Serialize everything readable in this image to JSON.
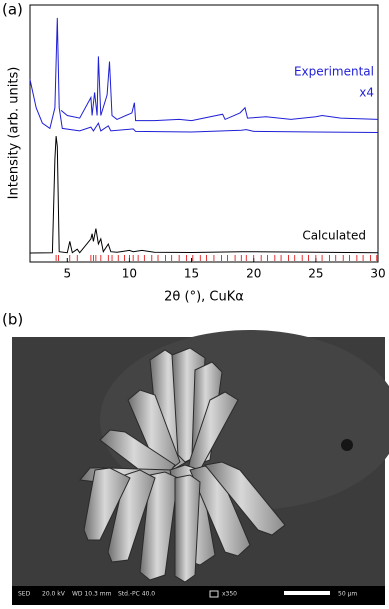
{
  "chart_data": {
    "type": "line",
    "panel_label": "(a)",
    "xlabel": "2θ (°), CuKα",
    "ylabel": "Intensity (arb. units)",
    "xlim": [
      2,
      30
    ],
    "xticks": [
      5,
      10,
      15,
      20,
      25,
      30
    ],
    "ylim": [
      0,
      100
    ],
    "series": [
      {
        "name": "Experimental",
        "color": "#1f1fd6",
        "x": [
          4.5,
          5,
          6,
          6.9,
          7.0,
          7.2,
          7.4,
          7.5,
          7.7,
          8.2,
          8.4,
          8.6,
          9,
          10.2,
          10.4,
          10.5,
          12,
          14,
          15,
          17.5,
          17.7,
          18.9,
          19.3,
          19.5,
          21,
          23,
          25,
          25.5,
          27,
          30
        ],
        "values": [
          59,
          57,
          56,
          64,
          57,
          66,
          57,
          80,
          57,
          65,
          78,
          57,
          55.5,
          58,
          62,
          55,
          55,
          55.5,
          55,
          57.5,
          55.5,
          58,
          60,
          56,
          56.5,
          55.5,
          56.5,
          57,
          56,
          55.5
        ],
        "label": "x4"
      },
      {
        "color": "#1f1fd6",
        "x": [
          2,
          2.5,
          3,
          3.6,
          4.0,
          4.2,
          4.35,
          4.6,
          6,
          6.9,
          7.1,
          7.5,
          7.7,
          8.3,
          8.5,
          10.3,
          10.5,
          15,
          19,
          19.4,
          20,
          25,
          30
        ],
        "values": [
          71,
          60,
          54,
          52,
          60,
          95,
          60,
          52,
          51,
          52.5,
          51,
          54,
          51,
          53,
          51,
          51.8,
          50.8,
          50.6,
          51.3,
          51.5,
          50.8,
          50.6,
          50.4
        ]
      },
      {
        "name": "Calculated",
        "color": "#000000",
        "x": [
          2,
          3.8,
          4.0,
          4.1,
          4.2,
          4.35,
          5.0,
          5.2,
          5.4,
          5.8,
          6.0,
          6.9,
          7.0,
          7.1,
          7.3,
          7.5,
          7.7,
          7.9,
          8.3,
          8.5,
          9,
          10,
          10.3,
          11,
          12,
          15,
          19,
          25,
          30
        ],
        "values": [
          3.5,
          3.6,
          40,
          49,
          45,
          4,
          3.6,
          8,
          3.6,
          5,
          3.6,
          9,
          11,
          8,
          13,
          7,
          9,
          4,
          7,
          4,
          3.8,
          4.5,
          4,
          4.5,
          3.8,
          3.7,
          4,
          3.8,
          3.6
        ]
      }
    ],
    "reflections": {
      "color": "#e00000",
      "x": [
        4.1,
        4.3,
        5.2,
        5.8,
        6.9,
        7.1,
        7.3,
        7.7,
        8.3,
        8.6,
        9.1,
        9.6,
        10.0,
        10.3,
        10.7,
        11.2,
        11.8,
        12.3,
        12.9,
        13.4,
        14.0,
        14.6,
        15.1,
        15.7,
        16.2,
        16.8,
        17.4,
        17.9,
        18.5,
        19.0,
        19.4,
        20.0,
        20.6,
        21.1,
        21.7,
        22.2,
        22.8,
        23.3,
        23.9,
        24.4,
        25.0,
        25.5,
        26.1,
        26.6,
        27.2,
        27.7,
        28.3,
        28.8,
        29.4,
        29.9
      ]
    }
  },
  "image_panel": {
    "panel_label": "(b)",
    "footer": [
      "SED",
      "20.0 kV",
      "WD 10.3 mm",
      "Std.-PC 40.0",
      "x350",
      "50 µm"
    ]
  }
}
